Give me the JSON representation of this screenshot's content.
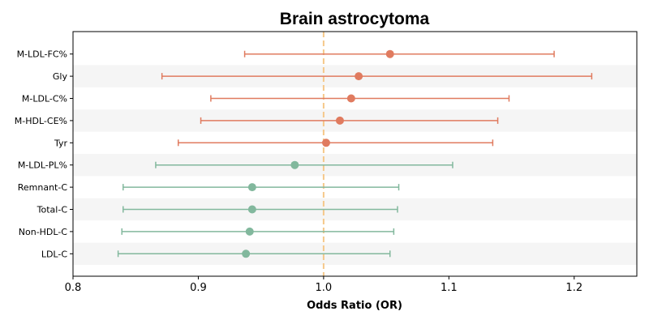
{
  "chart_data": {
    "type": "forest",
    "title": "Brain astrocytoma",
    "xlabel": "Odds Ratio (OR)",
    "ylabel": "",
    "xlim": [
      0.8,
      1.25
    ],
    "xticks": [
      "0.8",
      "0.9",
      "1.0",
      "1.1",
      "1.2"
    ],
    "reference_line": 1.0,
    "colors": {
      "positive": "#e07b5f",
      "negative": "#82b89d",
      "reference": "#f5c88a",
      "band": "#f5f5f5"
    },
    "rows": [
      {
        "label": "M-LDL-FC%",
        "or": 1.053,
        "low": 0.937,
        "high": 1.184,
        "group": "positive"
      },
      {
        "label": "Gly",
        "or": 1.028,
        "low": 0.871,
        "high": 1.214,
        "group": "positive"
      },
      {
        "label": "M-LDL-C%",
        "or": 1.022,
        "low": 0.91,
        "high": 1.148,
        "group": "positive"
      },
      {
        "label": "M-HDL-CE%",
        "or": 1.013,
        "low": 0.902,
        "high": 1.139,
        "group": "positive"
      },
      {
        "label": "Tyr",
        "or": 1.002,
        "low": 0.884,
        "high": 1.135,
        "group": "positive"
      },
      {
        "label": "M-LDL-PL%",
        "or": 0.977,
        "low": 0.866,
        "high": 1.103,
        "group": "negative"
      },
      {
        "label": "Remnant-C",
        "or": 0.943,
        "low": 0.84,
        "high": 1.06,
        "group": "negative"
      },
      {
        "label": "Total-C",
        "or": 0.943,
        "low": 0.84,
        "high": 1.059,
        "group": "negative"
      },
      {
        "label": "Non-HDL-C",
        "or": 0.941,
        "low": 0.839,
        "high": 1.056,
        "group": "negative"
      },
      {
        "label": "LDL-C",
        "or": 0.938,
        "low": 0.836,
        "high": 1.053,
        "group": "negative"
      }
    ]
  }
}
